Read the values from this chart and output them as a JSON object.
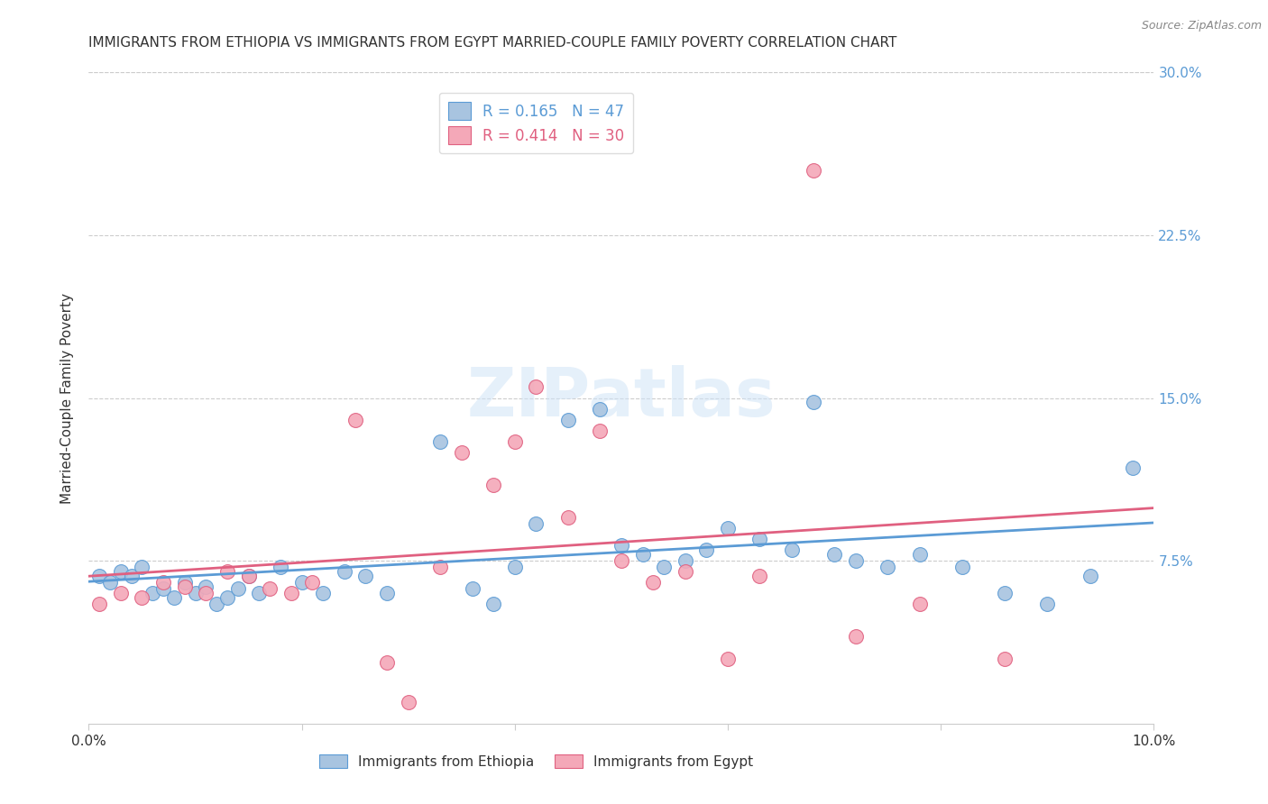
{
  "title": "IMMIGRANTS FROM ETHIOPIA VS IMMIGRANTS FROM EGYPT MARRIED-COUPLE FAMILY POVERTY CORRELATION CHART",
  "source": "Source: ZipAtlas.com",
  "ylabel": "Married-Couple Family Poverty",
  "xlim": [
    0.0,
    0.1
  ],
  "ylim": [
    0.0,
    0.3
  ],
  "yticks_right": [
    0.075,
    0.15,
    0.225,
    0.3
  ],
  "ytick_labels_right": [
    "7.5%",
    "15.0%",
    "22.5%",
    "30.0%"
  ],
  "R_ethiopia": 0.165,
  "N_ethiopia": 47,
  "R_egypt": 0.414,
  "N_egypt": 30,
  "color_ethiopia": "#a8c4e0",
  "color_egypt": "#f4a8b8",
  "line_color_ethiopia": "#5b9bd5",
  "line_color_egypt": "#e06080",
  "watermark": "ZIPatlas",
  "ethiopia_x": [
    0.001,
    0.002,
    0.003,
    0.004,
    0.005,
    0.006,
    0.007,
    0.008,
    0.009,
    0.01,
    0.011,
    0.012,
    0.013,
    0.014,
    0.015,
    0.016,
    0.018,
    0.02,
    0.022,
    0.024,
    0.026,
    0.028,
    0.033,
    0.036,
    0.038,
    0.04,
    0.042,
    0.045,
    0.048,
    0.05,
    0.052,
    0.054,
    0.056,
    0.058,
    0.06,
    0.063,
    0.066,
    0.068,
    0.07,
    0.072,
    0.075,
    0.078,
    0.082,
    0.086,
    0.09,
    0.094,
    0.098
  ],
  "ethiopia_y": [
    0.068,
    0.065,
    0.07,
    0.068,
    0.072,
    0.06,
    0.062,
    0.058,
    0.065,
    0.06,
    0.063,
    0.055,
    0.058,
    0.062,
    0.068,
    0.06,
    0.072,
    0.065,
    0.06,
    0.07,
    0.068,
    0.06,
    0.13,
    0.062,
    0.055,
    0.072,
    0.092,
    0.14,
    0.145,
    0.082,
    0.078,
    0.072,
    0.075,
    0.08,
    0.09,
    0.085,
    0.08,
    0.148,
    0.078,
    0.075,
    0.072,
    0.078,
    0.072,
    0.06,
    0.055,
    0.068,
    0.118
  ],
  "egypt_x": [
    0.001,
    0.003,
    0.005,
    0.007,
    0.009,
    0.011,
    0.013,
    0.015,
    0.017,
    0.019,
    0.021,
    0.025,
    0.028,
    0.03,
    0.033,
    0.035,
    0.038,
    0.04,
    0.042,
    0.045,
    0.048,
    0.05,
    0.053,
    0.056,
    0.06,
    0.063,
    0.068,
    0.072,
    0.078,
    0.086
  ],
  "egypt_y": [
    0.055,
    0.06,
    0.058,
    0.065,
    0.063,
    0.06,
    0.07,
    0.068,
    0.062,
    0.06,
    0.065,
    0.14,
    0.028,
    0.01,
    0.072,
    0.125,
    0.11,
    0.13,
    0.155,
    0.095,
    0.135,
    0.075,
    0.065,
    0.07,
    0.03,
    0.068,
    0.255,
    0.04,
    0.055,
    0.03
  ],
  "title_fontsize": 11,
  "axis_label_fontsize": 11,
  "tick_fontsize": 11
}
